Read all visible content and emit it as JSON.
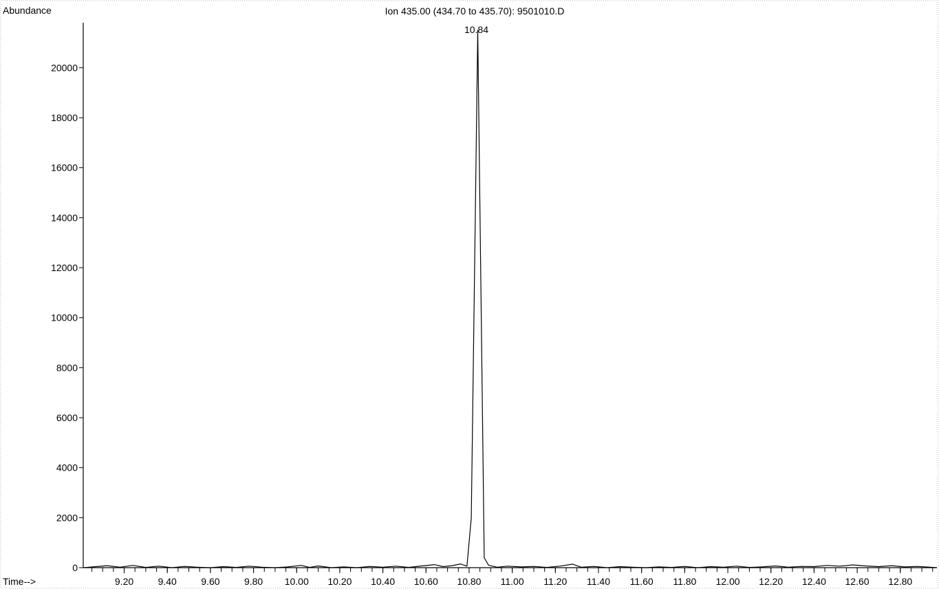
{
  "chart_data": {
    "type": "line",
    "title": "Ion 435.00 (434.70 to 435.70): 9501010.D",
    "ylabel": "Abundance",
    "xlabel": "Time-->",
    "xlim": [
      9.01,
      12.97
    ],
    "ylim": [
      0,
      21800
    ],
    "x_ticks": [
      9.2,
      9.4,
      9.6,
      9.8,
      10.0,
      10.2,
      10.4,
      10.6,
      10.8,
      11.0,
      11.2,
      11.4,
      11.6,
      11.8,
      12.0,
      12.2,
      12.4,
      12.6,
      12.8
    ],
    "x_tick_labels": [
      "9.20",
      "9.40",
      "9.60",
      "9.80",
      "10.00",
      "10.20",
      "10.40",
      "10.60",
      "10.80",
      "11.00",
      "11.20",
      "11.40",
      "11.60",
      "11.80",
      "12.00",
      "12.20",
      "12.40",
      "12.60",
      "12.80"
    ],
    "y_ticks": [
      0,
      2000,
      4000,
      6000,
      8000,
      10000,
      12000,
      14000,
      16000,
      18000,
      20000
    ],
    "y_tick_labels": [
      "0",
      "2000",
      "4000",
      "6000",
      "8000",
      "10000",
      "12000",
      "14000",
      "16000",
      "18000",
      "20000"
    ],
    "peak_annotation": {
      "label": "10.84",
      "x": 10.84,
      "y": 21500
    },
    "series": [
      {
        "x": [
          9.01,
          9.07,
          9.12,
          9.18,
          9.24,
          9.3,
          9.36,
          9.42,
          9.48,
          9.54,
          9.6,
          9.66,
          9.72,
          9.78,
          9.84,
          9.9,
          9.96,
          10.02,
          10.06,
          10.1,
          10.16,
          10.22,
          10.28,
          10.34,
          10.4,
          10.46,
          10.52,
          10.58,
          10.64,
          10.68,
          10.72,
          10.76,
          10.79,
          10.81,
          10.84,
          10.87,
          10.89,
          10.93,
          10.98,
          11.04,
          11.1,
          11.16,
          11.22,
          11.28,
          11.32,
          11.38,
          11.44,
          11.5,
          11.56,
          11.62,
          11.68,
          11.74,
          11.8,
          11.86,
          11.92,
          11.98,
          12.04,
          12.1,
          12.16,
          12.22,
          12.28,
          12.34,
          12.4,
          12.46,
          12.52,
          12.58,
          12.64,
          12.7,
          12.76,
          12.82,
          12.88,
          12.94,
          12.97
        ],
        "y": [
          0,
          40,
          80,
          20,
          90,
          10,
          60,
          0,
          50,
          20,
          0,
          40,
          10,
          60,
          20,
          0,
          30,
          90,
          10,
          70,
          0,
          30,
          0,
          50,
          20,
          60,
          10,
          70,
          120,
          40,
          80,
          150,
          60,
          2000,
          21500,
          400,
          100,
          20,
          60,
          30,
          50,
          10,
          60,
          140,
          20,
          50,
          0,
          40,
          20,
          0,
          30,
          10,
          50,
          0,
          40,
          20,
          60,
          10,
          30,
          70,
          20,
          50,
          40,
          90,
          60,
          110,
          70,
          40,
          80,
          30,
          50,
          20,
          0
        ]
      }
    ]
  }
}
